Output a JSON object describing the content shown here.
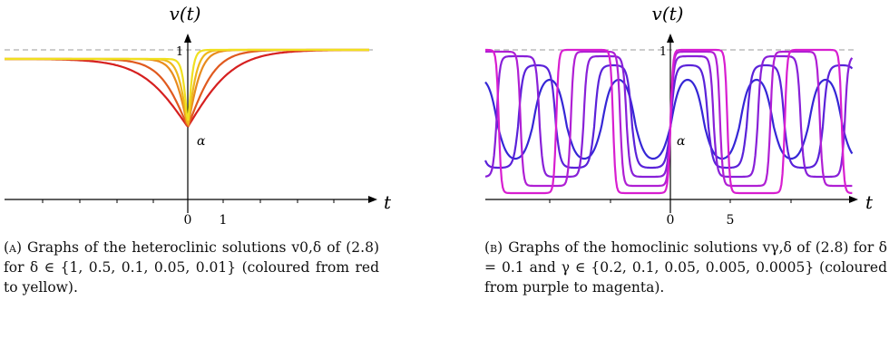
{
  "figures": [
    {
      "id": "A",
      "tag": "(a)",
      "caption": "Graphs of the heteroclinic solutions v0,δ of (2.8) for δ ∈ {1, 0.5, 0.1, 0.05, 0.01} (coloured from red to yellow).",
      "ylabel": "v(t)",
      "xlabel": "t",
      "y_one_label": "1",
      "alpha_label": "α",
      "xtick_labels": [
        "0",
        "1"
      ],
      "curve_colors": [
        "#d62020",
        "#e05a1f",
        "#e88c1e",
        "#eeb81c",
        "#f0e020"
      ]
    },
    {
      "id": "B",
      "tag": "(b)",
      "caption": "Graphs of the homoclinic solutions vγ,δ of (2.8) for δ = 0.1 and γ ∈ {0.2, 0.1, 0.05, 0.005, 0.0005} (coloured from purple to magenta).",
      "ylabel": "v(t)",
      "xlabel": "t",
      "y_one_label": "1",
      "alpha_label": "α",
      "xtick_labels": [
        "0",
        "5"
      ],
      "curve_colors": [
        "#3526d6",
        "#5a22d9",
        "#8820d8",
        "#b01fd4",
        "#d81ed0"
      ]
    }
  ],
  "chart_data": [
    {
      "type": "line",
      "title": "",
      "xlabel": "t",
      "ylabel": "v(t)",
      "ylim": [
        0,
        1
      ],
      "reference_line": {
        "y": 1,
        "style": "dashed"
      },
      "alpha": 0.3,
      "series_param": "δ",
      "series": [
        {
          "delta": 1,
          "color": "#d62020"
        },
        {
          "delta": 0.5,
          "color": "#e05a1f"
        },
        {
          "delta": 0.1,
          "color": "#e88c1e"
        },
        {
          "delta": 0.05,
          "color": "#eeb81c"
        },
        {
          "delta": 0.01,
          "color": "#f0e020"
        }
      ]
    },
    {
      "type": "line",
      "title": "",
      "xlabel": "t",
      "ylabel": "v(t)",
      "ylim": [
        0,
        1
      ],
      "reference_line": {
        "y": 1,
        "style": "dashed"
      },
      "alpha": 0.3,
      "delta": 0.1,
      "series_param": "γ",
      "series": [
        {
          "gamma": 0.2,
          "color": "#3526d6"
        },
        {
          "gamma": 0.1,
          "color": "#5a22d9"
        },
        {
          "gamma": 0.05,
          "color": "#8820d8"
        },
        {
          "gamma": 0.005,
          "color": "#b01fd4"
        },
        {
          "gamma": 0.0005,
          "color": "#d81ed0"
        }
      ]
    }
  ]
}
